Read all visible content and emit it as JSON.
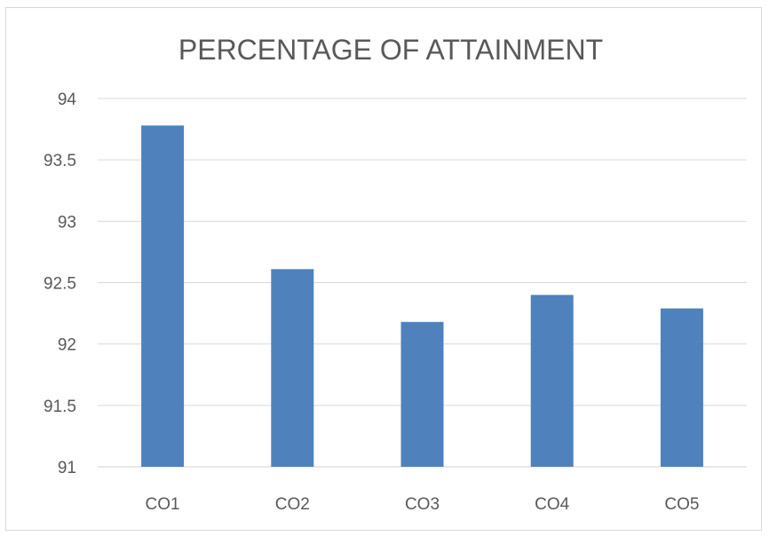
{
  "chart_data": {
    "type": "bar",
    "title": "PERCENTAGE OF ATTAINMENT",
    "xlabel": "",
    "ylabel": "",
    "categories": [
      "CO1",
      "CO2",
      "CO3",
      "CO4",
      "CO5"
    ],
    "values": [
      93.78,
      92.61,
      92.18,
      92.4,
      92.29
    ],
    "ylim": [
      91,
      94
    ],
    "yticks": [
      "91",
      "91.5",
      "92",
      "92.5",
      "93",
      "93.5",
      "94"
    ],
    "grid": true,
    "bar_color": "#4f81bd"
  }
}
